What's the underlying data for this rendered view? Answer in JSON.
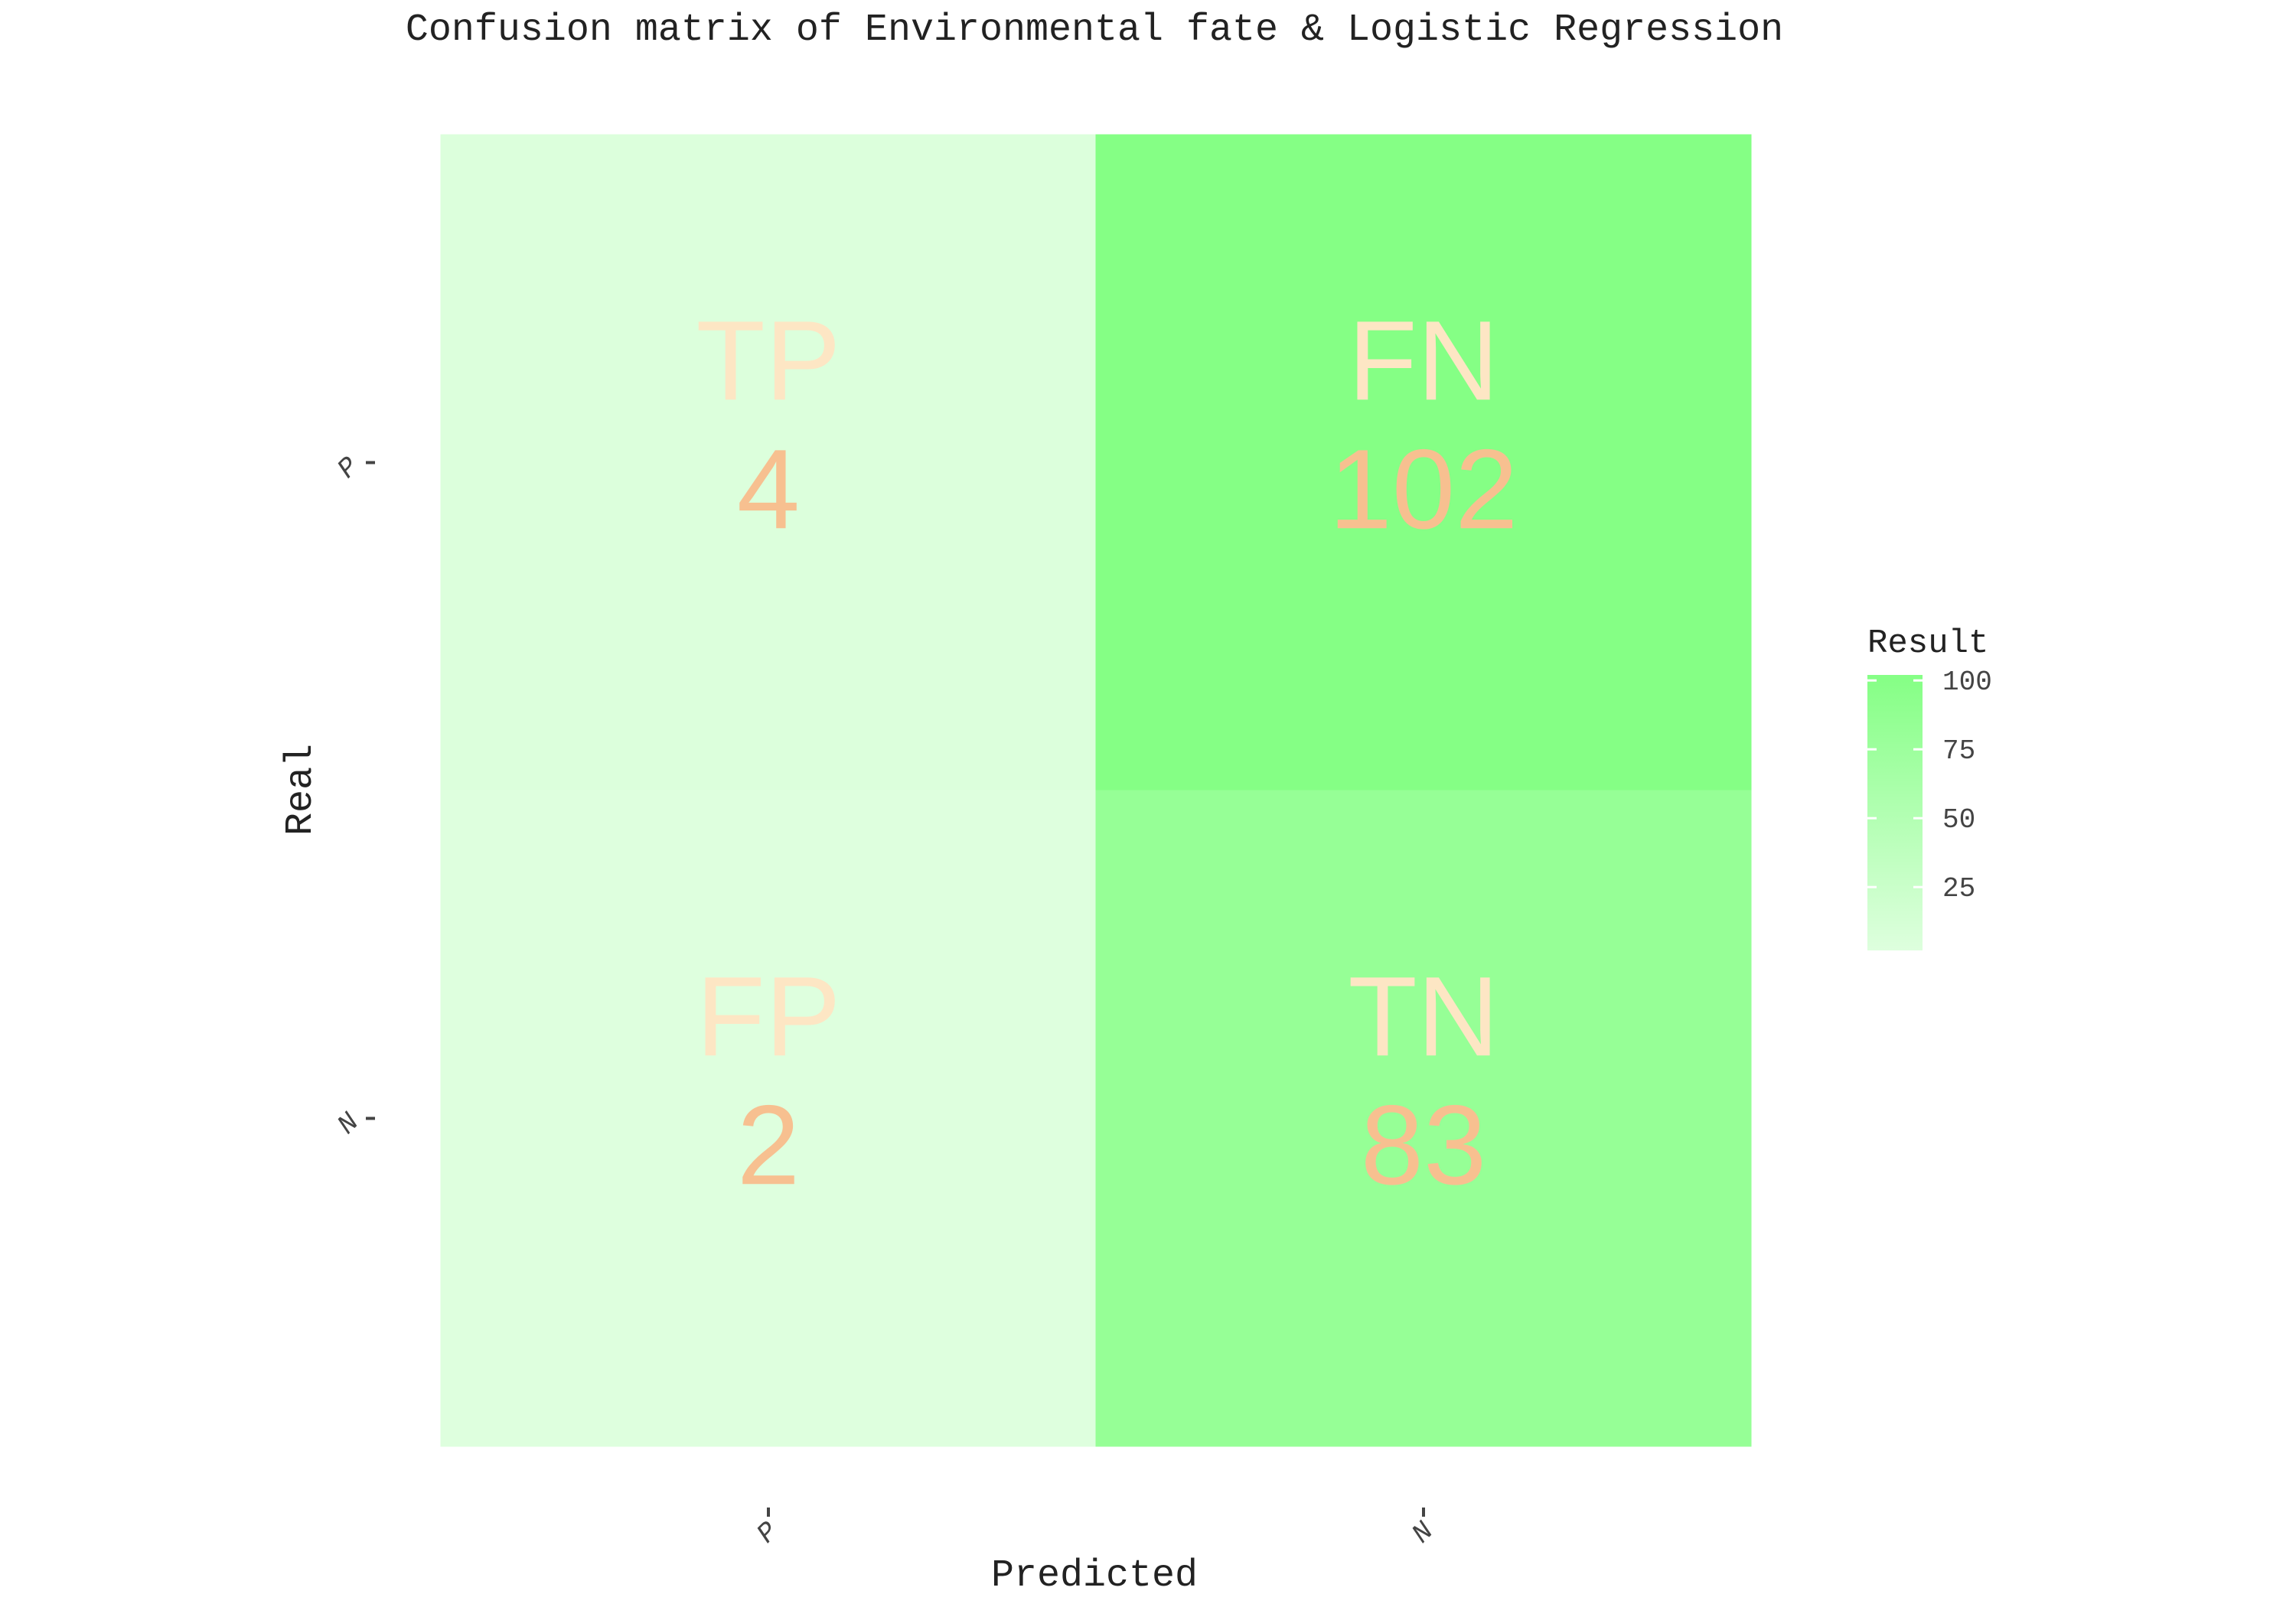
{
  "chart_data": {
    "type": "heatmap",
    "title": "Confusion matrix of Environmental fate & Logistic Regression",
    "xlabel": "Predicted",
    "ylabel": "Real",
    "x_categories": [
      "P",
      "N"
    ],
    "y_categories": [
      "P",
      "N"
    ],
    "cells": [
      {
        "real": "P",
        "predicted": "P",
        "label": "TP",
        "value": 4
      },
      {
        "real": "P",
        "predicted": "N",
        "label": "FN",
        "value": 102
      },
      {
        "real": "N",
        "predicted": "P",
        "label": "FP",
        "value": 2
      },
      {
        "real": "N",
        "predicted": "N",
        "label": "TN",
        "value": 83
      }
    ],
    "legend": {
      "title": "Result",
      "ticks": [
        25,
        50,
        75,
        100
      ],
      "range": [
        2,
        102
      ],
      "low_color": "#deffde",
      "high_color": "#85ff85",
      "placement": "right"
    },
    "cell_label_color": "#fde6c4",
    "cell_value_color": "#f7c090",
    "grid": false
  }
}
